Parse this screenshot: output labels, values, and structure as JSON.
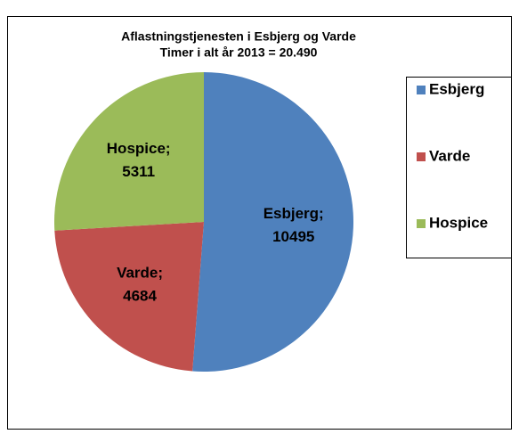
{
  "chart_data": {
    "type": "pie",
    "title": "Aflastningstjenesten i Esbjerg og Varde",
    "subtitle": "Timer i alt år 2013 = 20.490",
    "categories": [
      "Esbjerg",
      "Varde",
      "Hospice"
    ],
    "values": [
      10495,
      4684,
      5311
    ],
    "value_labels": [
      "Esbjerg; 10495",
      "Varde; 4684",
      "Hospice; 5311"
    ],
    "colors": [
      "#4f81bd",
      "#c0504d",
      "#9bbb59"
    ],
    "legend": "right"
  }
}
